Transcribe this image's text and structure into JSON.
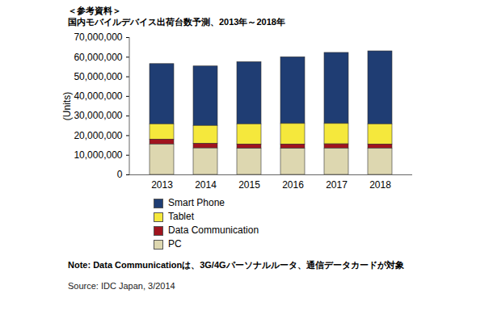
{
  "chart_data": {
    "type": "bar",
    "subtitle": "＜参考資料＞",
    "title": "国内モバイルデバイス出荷台数予測、2013年～2018年",
    "y_label": "(Units)",
    "stacked": true,
    "grid": false,
    "categories": [
      "2013",
      "2014",
      "2015",
      "2016",
      "2017",
      "2018"
    ],
    "series": [
      {
        "name": "Smart Phone",
        "color": "#1f3d73",
        "values": [
          30700000,
          30300000,
          31700000,
          34000000,
          36200000,
          37200000
        ]
      },
      {
        "name": "Tablet",
        "color": "#f5e83c",
        "values": [
          7800000,
          9200000,
          10300000,
          10500000,
          10400000,
          10300000
        ]
      },
      {
        "name": "Data Communication",
        "color": "#a0141e",
        "values": [
          2500000,
          2300000,
          2200000,
          2200000,
          2200000,
          2100000
        ]
      },
      {
        "name": "PC",
        "color": "#ddd7b0",
        "values": [
          15500000,
          13500000,
          13300000,
          13300000,
          13400000,
          13400000
        ]
      }
    ],
    "ylim": [
      0,
      70000000
    ],
    "yticks": [
      0,
      {
        "value": 10000000,
        "label": "10,000,000"
      },
      {
        "value": 20000000,
        "label": "20,000,000"
      },
      {
        "value": 30000000,
        "label": "30,000,000"
      },
      {
        "value": 40000000,
        "label": "40,000,000"
      },
      {
        "value": 50000000,
        "label": "50,000,000"
      },
      {
        "value": 60000000,
        "label": "60,000,000"
      },
      {
        "value": 70000000,
        "label": "70,000,000"
      }
    ],
    "annotations": [
      "Note: Data Communicationは、3G/4Gパーソナルルータ、通信データカードが対象",
      "Source: IDC Japan, 3/2014"
    ]
  }
}
